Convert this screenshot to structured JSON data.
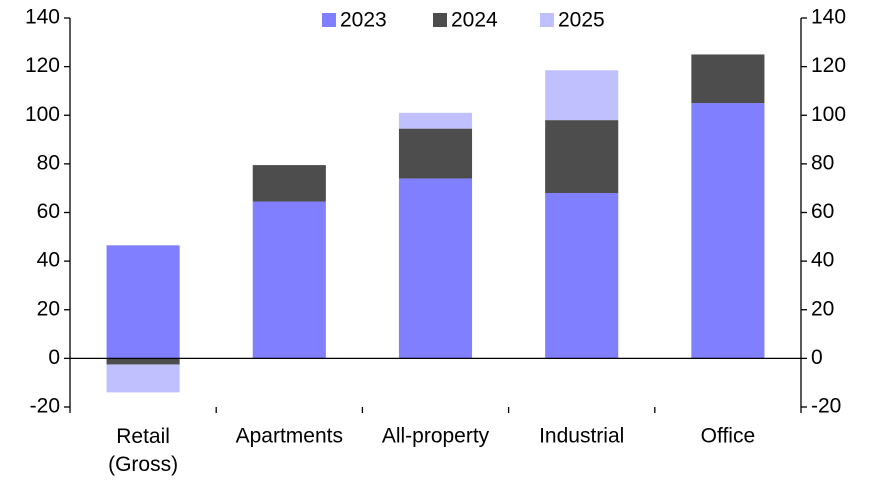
{
  "chart_data": {
    "type": "stacked-bar",
    "categories": [
      "Retail (Gross)",
      "Apartments",
      "All-property",
      "Industrial",
      "Office"
    ],
    "series": [
      {
        "name": "2023",
        "color": "#7f7fff",
        "values": [
          46.5,
          64.5,
          74,
          68,
          105
        ]
      },
      {
        "name": "2024",
        "color": "#4d4d4d",
        "values": [
          -2.5,
          15,
          20.5,
          30,
          20
        ]
      },
      {
        "name": "2025",
        "color": "#c0c0ff",
        "values": [
          -11.5,
          0,
          6.5,
          20.5,
          0
        ]
      }
    ],
    "ylim": [
      -20,
      140
    ],
    "yticks": [
      -20,
      0,
      20,
      40,
      60,
      80,
      100,
      120,
      140
    ],
    "y2lim": [
      -20,
      140
    ],
    "y2ticks": [
      -20,
      0,
      20,
      40,
      60,
      80,
      100,
      120,
      140
    ],
    "legend": "top"
  }
}
